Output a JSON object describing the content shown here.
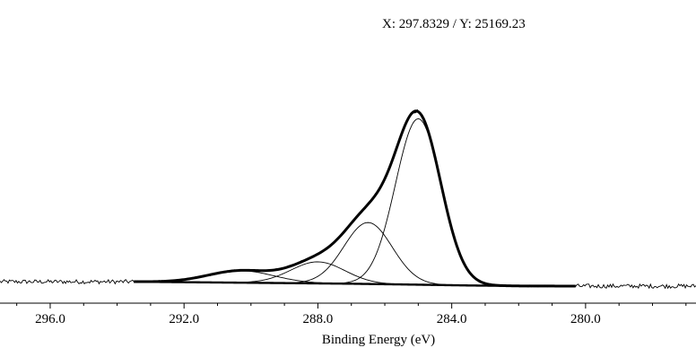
{
  "readout": {
    "text": "X: 297.8329 / Y: 25169.23"
  },
  "chart_data": {
    "type": "line",
    "xlabel": "Binding Energy (eV)",
    "ylabel": "",
    "xlim": [
      297.5,
      276.7
    ],
    "ylim": [
      0,
      28000
    ],
    "x_reversed": true,
    "x_ticks": [
      296.0,
      292.0,
      288.0,
      284.0,
      280.0
    ],
    "x_tick_labels": [
      "296.0",
      "292.0",
      "288.0",
      "284.0",
      "280.0"
    ],
    "grid": false,
    "legend": "none",
    "background_fit_range": [
      293.5,
      280.3
    ],
    "baseline_level": 550,
    "raw_spectrum_noise": 120,
    "series": [
      {
        "role": "raw-data",
        "x_start": 297.5,
        "x_end": 276.7,
        "step": 0.04,
        "peaks": [
          {
            "center": 285.0,
            "height": 20800,
            "fwhm": 1.6
          },
          {
            "center": 286.5,
            "height": 7700,
            "fwhm": 1.7
          },
          {
            "center": 288.0,
            "height": 2700,
            "fwhm": 1.9
          },
          {
            "center": 290.3,
            "height": 1500,
            "fwhm": 2.3
          }
        ]
      },
      {
        "role": "envelope",
        "x_start": 293.5,
        "x_end": 280.3,
        "step": 0.05,
        "peaks": [
          {
            "center": 285.0,
            "height": 20800,
            "fwhm": 1.6
          },
          {
            "center": 286.5,
            "height": 7700,
            "fwhm": 1.7
          },
          {
            "center": 288.0,
            "height": 2700,
            "fwhm": 1.9
          },
          {
            "center": 290.3,
            "height": 1500,
            "fwhm": 2.3
          }
        ]
      },
      {
        "role": "component",
        "center": 285.0,
        "height": 20800,
        "fwhm": 1.6
      },
      {
        "role": "component",
        "center": 286.5,
        "height": 7700,
        "fwhm": 1.7
      },
      {
        "role": "component",
        "center": 288.0,
        "height": 2700,
        "fwhm": 1.9
      },
      {
        "role": "component",
        "center": 290.3,
        "height": 1500,
        "fwhm": 2.3
      },
      {
        "role": "background",
        "points": [
          [
            293.5,
            550
          ],
          [
            289.0,
            380
          ],
          [
            287.0,
            300
          ],
          [
            285.0,
            180
          ],
          [
            283.5,
            80
          ],
          [
            282.0,
            20
          ],
          [
            280.3,
            0
          ]
        ]
      }
    ],
    "colors": {
      "background": "#ffffff",
      "trace": "#000000"
    }
  }
}
